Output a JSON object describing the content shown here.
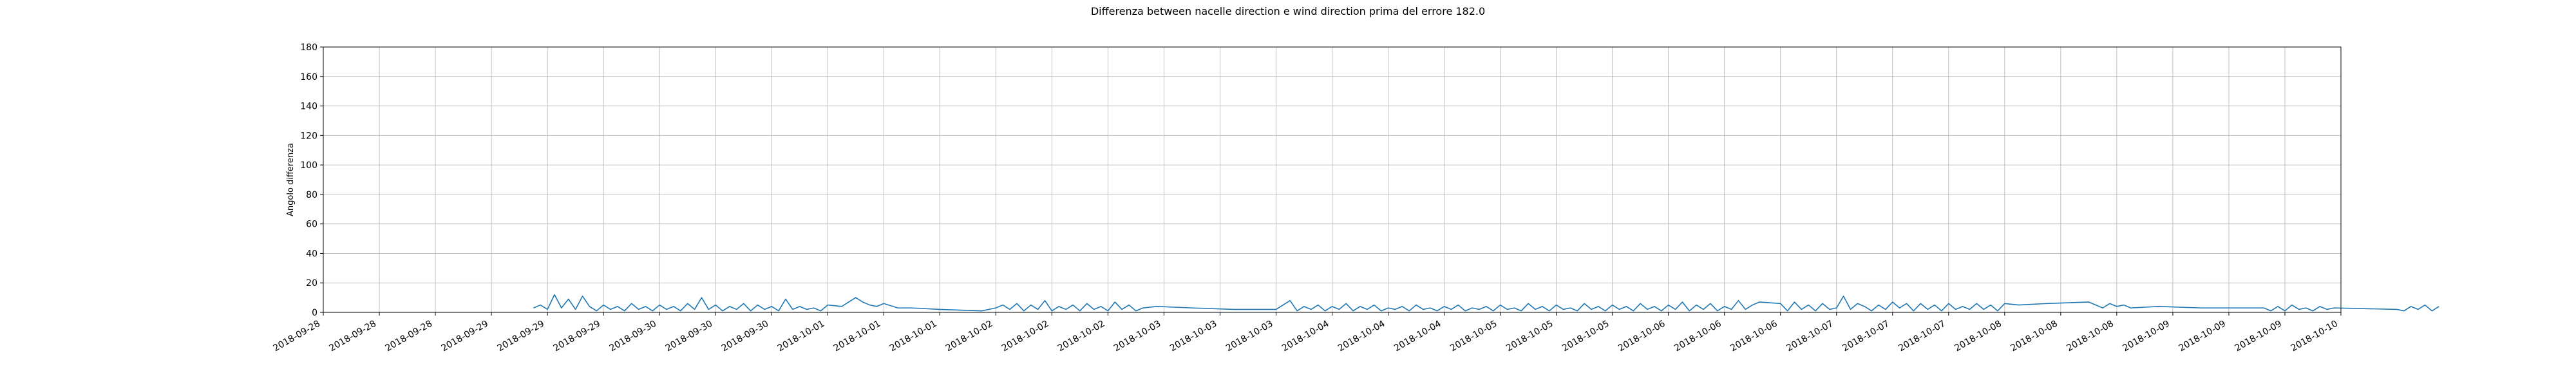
{
  "chart_data": {
    "type": "line",
    "title": "Differenza between nacelle direction e wind direction prima del errore 182.0",
    "xlabel": "",
    "ylabel": "Angolo differenza",
    "ylim": [
      0,
      180
    ],
    "yticks": [
      0,
      20,
      40,
      60,
      80,
      100,
      120,
      140,
      160,
      180
    ],
    "xlim": [
      "2018-09-28 00:00",
      "2018-10-10 00:00"
    ],
    "xtick_labels": [
      "2018-09-28",
      "2018-09-28",
      "2018-09-28",
      "2018-09-29",
      "2018-09-29",
      "2018-09-29",
      "2018-09-30",
      "2018-09-30",
      "2018-09-30",
      "2018-10-01",
      "2018-10-01",
      "2018-10-01",
      "2018-10-02",
      "2018-10-02",
      "2018-10-02",
      "2018-10-03",
      "2018-10-03",
      "2018-10-03",
      "2018-10-04",
      "2018-10-04",
      "2018-10-04",
      "2018-10-05",
      "2018-10-05",
      "2018-10-05",
      "2018-10-06",
      "2018-10-06",
      "2018-10-06",
      "2018-10-07",
      "2018-10-07",
      "2018-10-07",
      "2018-10-08",
      "2018-10-08",
      "2018-10-08",
      "2018-10-09",
      "2018-10-09",
      "2018-10-09",
      "2018-10-10"
    ],
    "grid": true,
    "legend": "none",
    "series": [
      {
        "color": "#1f77b4",
        "points": [
          [
            "2018-09-29 06:00",
            3
          ],
          [
            "2018-09-29 07:00",
            5
          ],
          [
            "2018-09-29 08:00",
            2
          ],
          [
            "2018-09-29 09:00",
            12
          ],
          [
            "2018-09-29 10:00",
            3
          ],
          [
            "2018-09-29 11:00",
            9
          ],
          [
            "2018-09-29 12:00",
            2
          ],
          [
            "2018-09-29 13:00",
            11
          ],
          [
            "2018-09-29 14:00",
            4
          ],
          [
            "2018-09-29 15:00",
            1
          ],
          [
            "2018-09-29 16:00",
            5
          ],
          [
            "2018-09-29 17:00",
            2
          ],
          [
            "2018-09-29 18:00",
            4
          ],
          [
            "2018-09-29 19:00",
            1
          ],
          [
            "2018-09-29 20:00",
            6
          ],
          [
            "2018-09-29 21:00",
            2
          ],
          [
            "2018-09-29 22:00",
            4
          ],
          [
            "2018-09-29 23:00",
            1
          ],
          [
            "2018-09-30 00:00",
            5
          ],
          [
            "2018-09-30 01:00",
            2
          ],
          [
            "2018-09-30 02:00",
            4
          ],
          [
            "2018-09-30 03:00",
            1
          ],
          [
            "2018-09-30 04:00",
            6
          ],
          [
            "2018-09-30 05:00",
            2
          ],
          [
            "2018-09-30 06:00",
            10
          ],
          [
            "2018-09-30 07:00",
            2
          ],
          [
            "2018-09-30 08:00",
            5
          ],
          [
            "2018-09-30 09:00",
            1
          ],
          [
            "2018-09-30 10:00",
            4
          ],
          [
            "2018-09-30 11:00",
            2
          ],
          [
            "2018-09-30 12:00",
            6
          ],
          [
            "2018-09-30 13:00",
            1
          ],
          [
            "2018-09-30 14:00",
            5
          ],
          [
            "2018-09-30 15:00",
            2
          ],
          [
            "2018-09-30 16:00",
            4
          ],
          [
            "2018-09-30 17:00",
            1
          ],
          [
            "2018-09-30 18:00",
            9
          ],
          [
            "2018-09-30 19:00",
            2
          ],
          [
            "2018-09-30 20:00",
            4
          ],
          [
            "2018-09-30 21:00",
            2
          ],
          [
            "2018-09-30 22:00",
            3
          ],
          [
            "2018-09-30 23:00",
            1
          ],
          [
            "2018-10-01 00:00",
            5
          ],
          [
            "2018-10-01 02:00",
            4
          ],
          [
            "2018-10-01 04:00",
            10
          ],
          [
            "2018-10-01 05:00",
            7
          ],
          [
            "2018-10-01 06:00",
            5
          ],
          [
            "2018-10-01 07:00",
            4
          ],
          [
            "2018-10-01 08:00",
            6
          ],
          [
            "2018-10-01 10:00",
            3
          ],
          [
            "2018-10-01 12:00",
            3
          ],
          [
            "2018-10-01 16:00",
            2
          ],
          [
            "2018-10-01 22:00",
            1
          ],
          [
            "2018-10-02 00:00",
            3
          ],
          [
            "2018-10-02 01:00",
            5
          ],
          [
            "2018-10-02 02:00",
            2
          ],
          [
            "2018-10-02 03:00",
            6
          ],
          [
            "2018-10-02 04:00",
            1
          ],
          [
            "2018-10-02 05:00",
            5
          ],
          [
            "2018-10-02 06:00",
            2
          ],
          [
            "2018-10-02 07:00",
            8
          ],
          [
            "2018-10-02 08:00",
            1
          ],
          [
            "2018-10-02 09:00",
            4
          ],
          [
            "2018-10-02 10:00",
            2
          ],
          [
            "2018-10-02 11:00",
            5
          ],
          [
            "2018-10-02 12:00",
            1
          ],
          [
            "2018-10-02 13:00",
            6
          ],
          [
            "2018-10-02 14:00",
            2
          ],
          [
            "2018-10-02 15:00",
            4
          ],
          [
            "2018-10-02 16:00",
            1
          ],
          [
            "2018-10-02 17:00",
            7
          ],
          [
            "2018-10-02 18:00",
            2
          ],
          [
            "2018-10-02 19:00",
            5
          ],
          [
            "2018-10-02 20:00",
            1
          ],
          [
            "2018-10-02 21:00",
            3
          ],
          [
            "2018-10-02 23:00",
            4
          ],
          [
            "2018-10-03 04:00",
            3
          ],
          [
            "2018-10-03 10:00",
            2
          ],
          [
            "2018-10-03 16:00",
            2
          ],
          [
            "2018-10-03 18:00",
            8
          ],
          [
            "2018-10-03 19:00",
            1
          ],
          [
            "2018-10-03 20:00",
            4
          ],
          [
            "2018-10-03 21:00",
            2
          ],
          [
            "2018-10-03 22:00",
            5
          ],
          [
            "2018-10-03 23:00",
            1
          ],
          [
            "2018-10-04 00:00",
            4
          ],
          [
            "2018-10-04 01:00",
            2
          ],
          [
            "2018-10-04 02:00",
            6
          ],
          [
            "2018-10-04 03:00",
            1
          ],
          [
            "2018-10-04 04:00",
            4
          ],
          [
            "2018-10-04 05:00",
            2
          ],
          [
            "2018-10-04 06:00",
            5
          ],
          [
            "2018-10-04 07:00",
            1
          ],
          [
            "2018-10-04 08:00",
            3
          ],
          [
            "2018-10-04 09:00",
            2
          ],
          [
            "2018-10-04 10:00",
            4
          ],
          [
            "2018-10-04 11:00",
            1
          ],
          [
            "2018-10-04 12:00",
            5
          ],
          [
            "2018-10-04 13:00",
            2
          ],
          [
            "2018-10-04 14:00",
            3
          ],
          [
            "2018-10-04 15:00",
            1
          ],
          [
            "2018-10-04 16:00",
            4
          ],
          [
            "2018-10-04 17:00",
            2
          ],
          [
            "2018-10-04 18:00",
            5
          ],
          [
            "2018-10-04 19:00",
            1
          ],
          [
            "2018-10-04 20:00",
            3
          ],
          [
            "2018-10-04 21:00",
            2
          ],
          [
            "2018-10-04 22:00",
            4
          ],
          [
            "2018-10-04 23:00",
            1
          ],
          [
            "2018-10-05 00:00",
            5
          ],
          [
            "2018-10-05 01:00",
            2
          ],
          [
            "2018-10-05 02:00",
            3
          ],
          [
            "2018-10-05 03:00",
            1
          ],
          [
            "2018-10-05 04:00",
            6
          ],
          [
            "2018-10-05 05:00",
            2
          ],
          [
            "2018-10-05 06:00",
            4
          ],
          [
            "2018-10-05 07:00",
            1
          ],
          [
            "2018-10-05 08:00",
            5
          ],
          [
            "2018-10-05 09:00",
            2
          ],
          [
            "2018-10-05 10:00",
            3
          ],
          [
            "2018-10-05 11:00",
            1
          ],
          [
            "2018-10-05 12:00",
            6
          ],
          [
            "2018-10-05 13:00",
            2
          ],
          [
            "2018-10-05 14:00",
            4
          ],
          [
            "2018-10-05 15:00",
            1
          ],
          [
            "2018-10-05 16:00",
            5
          ],
          [
            "2018-10-05 17:00",
            2
          ],
          [
            "2018-10-05 18:00",
            4
          ],
          [
            "2018-10-05 19:00",
            1
          ],
          [
            "2018-10-05 20:00",
            6
          ],
          [
            "2018-10-05 21:00",
            2
          ],
          [
            "2018-10-05 22:00",
            4
          ],
          [
            "2018-10-05 23:00",
            1
          ],
          [
            "2018-10-06 00:00",
            5
          ],
          [
            "2018-10-06 01:00",
            2
          ],
          [
            "2018-10-06 02:00",
            7
          ],
          [
            "2018-10-06 03:00",
            1
          ],
          [
            "2018-10-06 04:00",
            5
          ],
          [
            "2018-10-06 05:00",
            2
          ],
          [
            "2018-10-06 06:00",
            6
          ],
          [
            "2018-10-06 07:00",
            1
          ],
          [
            "2018-10-06 08:00",
            4
          ],
          [
            "2018-10-06 09:00",
            2
          ],
          [
            "2018-10-06 10:00",
            8
          ],
          [
            "2018-10-06 11:00",
            2
          ],
          [
            "2018-10-06 12:00",
            5
          ],
          [
            "2018-10-06 13:00",
            7
          ],
          [
            "2018-10-06 16:00",
            6
          ],
          [
            "2018-10-06 17:00",
            1
          ],
          [
            "2018-10-06 18:00",
            7
          ],
          [
            "2018-10-06 19:00",
            2
          ],
          [
            "2018-10-06 20:00",
            5
          ],
          [
            "2018-10-06 21:00",
            1
          ],
          [
            "2018-10-06 22:00",
            6
          ],
          [
            "2018-10-06 23:00",
            2
          ],
          [
            "2018-10-07 00:00",
            3
          ],
          [
            "2018-10-07 01:00",
            11
          ],
          [
            "2018-10-07 02:00",
            2
          ],
          [
            "2018-10-07 03:00",
            6
          ],
          [
            "2018-10-07 04:00",
            4
          ],
          [
            "2018-10-07 05:00",
            1
          ],
          [
            "2018-10-07 06:00",
            5
          ],
          [
            "2018-10-07 07:00",
            2
          ],
          [
            "2018-10-07 08:00",
            7
          ],
          [
            "2018-10-07 09:00",
            3
          ],
          [
            "2018-10-07 10:00",
            6
          ],
          [
            "2018-10-07 11:00",
            1
          ],
          [
            "2018-10-07 12:00",
            6
          ],
          [
            "2018-10-07 13:00",
            2
          ],
          [
            "2018-10-07 14:00",
            5
          ],
          [
            "2018-10-07 15:00",
            1
          ],
          [
            "2018-10-07 16:00",
            6
          ],
          [
            "2018-10-07 17:00",
            2
          ],
          [
            "2018-10-07 18:00",
            4
          ],
          [
            "2018-10-07 19:00",
            2
          ],
          [
            "2018-10-07 20:00",
            6
          ],
          [
            "2018-10-07 21:00",
            2
          ],
          [
            "2018-10-07 22:00",
            5
          ],
          [
            "2018-10-07 23:00",
            1
          ],
          [
            "2018-10-08 00:00",
            6
          ],
          [
            "2018-10-08 02:00",
            5
          ],
          [
            "2018-10-08 06:00",
            6
          ],
          [
            "2018-10-08 12:00",
            7
          ],
          [
            "2018-10-08 14:00",
            3
          ],
          [
            "2018-10-08 15:00",
            6
          ],
          [
            "2018-10-08 16:00",
            4
          ],
          [
            "2018-10-08 17:00",
            5
          ],
          [
            "2018-10-08 18:00",
            3
          ],
          [
            "2018-10-08 22:00",
            4
          ],
          [
            "2018-10-09 04:00",
            3
          ],
          [
            "2018-10-09 10:00",
            3
          ],
          [
            "2018-10-09 13:00",
            3
          ],
          [
            "2018-10-09 14:00",
            1
          ],
          [
            "2018-10-09 15:00",
            4
          ],
          [
            "2018-10-09 16:00",
            1
          ],
          [
            "2018-10-09 17:00",
            5
          ],
          [
            "2018-10-09 18:00",
            2
          ],
          [
            "2018-10-09 19:00",
            3
          ],
          [
            "2018-10-09 20:00",
            1
          ],
          [
            "2018-10-09 21:00",
            4
          ],
          [
            "2018-10-09 22:00",
            2
          ],
          [
            "2018-10-09 23:00",
            3
          ],
          [
            "2018-10-10 08:00",
            2
          ],
          [
            "2018-10-10 09:00",
            1
          ],
          [
            "2018-10-10 10:00",
            4
          ],
          [
            "2018-10-10 11:00",
            2
          ],
          [
            "2018-10-10 12:00",
            5
          ],
          [
            "2018-10-10 13:00",
            1
          ],
          [
            "2018-10-10 14:00",
            4
          ]
        ]
      }
    ]
  }
}
